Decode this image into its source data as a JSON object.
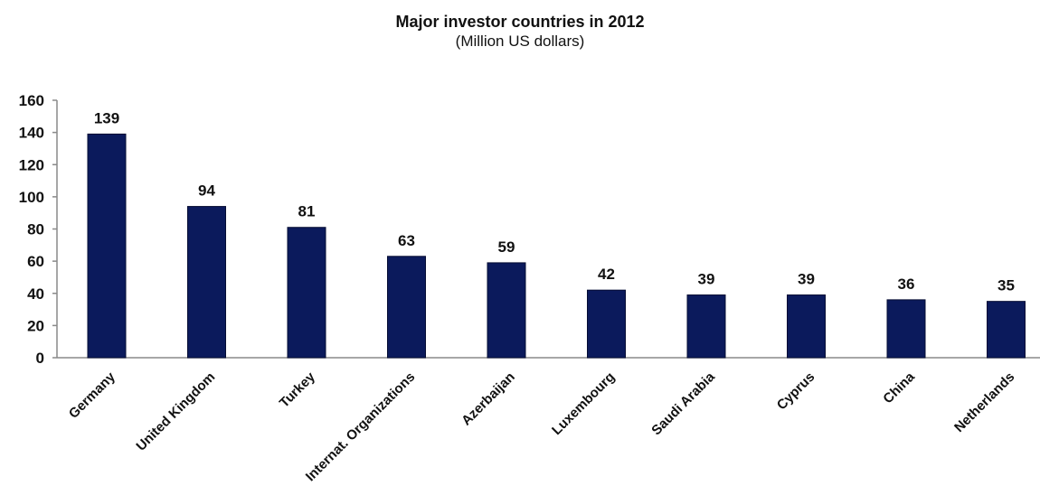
{
  "chart_data": {
    "type": "bar",
    "title": "Major investor countries in 2012",
    "subtitle": "(Million US dollars)",
    "xlabel": "",
    "ylabel": "",
    "categories": [
      "Germany",
      "United Kingdom",
      "Turkey",
      "Internat. Organizations",
      "Azerbaijan",
      "Luxembourg",
      "Saudi Arabia",
      "Cyprus",
      "China",
      "Netherlands"
    ],
    "values": [
      139,
      94,
      81,
      63,
      59,
      42,
      39,
      39,
      36,
      35
    ],
    "ylim": [
      0,
      160
    ],
    "yticks": [
      0,
      20,
      40,
      60,
      80,
      100,
      120,
      140,
      160
    ],
    "data_labels": true,
    "grid": false,
    "legend": "none",
    "bar_color": "#0b1a5c"
  }
}
